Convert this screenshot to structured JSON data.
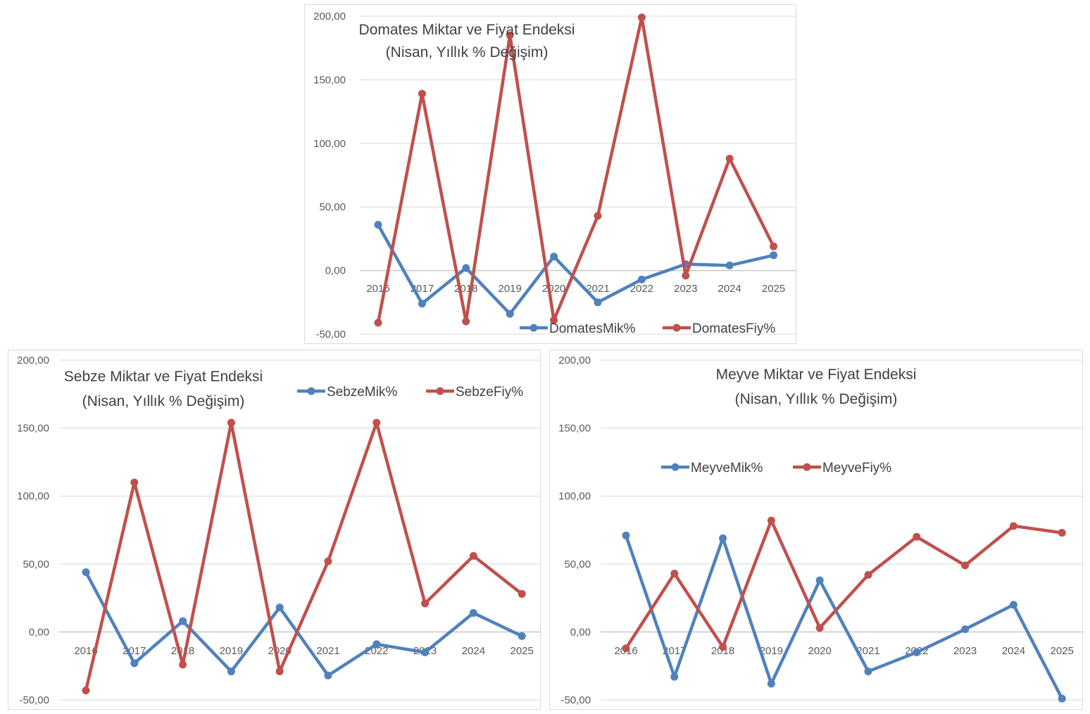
{
  "charts": [
    {
      "title_line1": "Domates Miktar ve Fiyat Endeksi",
      "title_line2": "(Nisan, Yıllık % Değişim)",
      "colors": {
        "miktar": "#4f81bd",
        "fiyat": "#c0504d",
        "grid": "#d9d9d9",
        "axis": "#bfbfbf"
      },
      "chart_data": {
        "type": "line",
        "title": "Domates Miktar ve Fiyat Endeksi (Nisan, Yıllık % Değişim)",
        "categories": [
          "2016",
          "2017",
          "2018",
          "2019",
          "2020",
          "2021",
          "2022",
          "2023",
          "2024",
          "2025"
        ],
        "ylim": [
          -50,
          200
        ],
        "yticks": [
          "-50,00",
          "0,00",
          "50,00",
          "100,00",
          "150,00",
          "200,00"
        ],
        "grid": true,
        "legend_position": "bottom",
        "series": [
          {
            "name": "DomatesMik%",
            "values": [
              36,
              -26,
              2,
              -34,
              11,
              -25,
              -7,
              5,
              4,
              12
            ]
          },
          {
            "name": "DomatesFiy%",
            "values": [
              -41,
              139,
              -40,
              185,
              -39,
              43,
              199,
              -4,
              88,
              19
            ]
          }
        ]
      }
    },
    {
      "title_line1": "Sebze Miktar ve Fiyat Endeksi",
      "title_line2": "(Nisan, Yıllık % Değişim)",
      "colors": {
        "miktar": "#4f81bd",
        "fiyat": "#c0504d",
        "grid": "#d9d9d9",
        "axis": "#bfbfbf"
      },
      "chart_data": {
        "type": "line",
        "title": "Sebze Miktar ve Fiyat Endeksi (Nisan, Yıllık % Değişim)",
        "categories": [
          "2016",
          "2017",
          "2018",
          "2019",
          "2020",
          "2021",
          "2022",
          "2023",
          "2024",
          "2025"
        ],
        "ylim": [
          -50,
          200
        ],
        "yticks": [
          "-50,00",
          "0,00",
          "50,00",
          "100,00",
          "150,00",
          "200,00"
        ],
        "grid": true,
        "legend_position": "top-right",
        "series": [
          {
            "name": "SebzeMik%",
            "values": [
              44,
              -23,
              8,
              -29,
              18,
              -32,
              -9,
              -15,
              14,
              -3
            ]
          },
          {
            "name": "SebzeFiy%",
            "values": [
              -43,
              110,
              -24,
              154,
              -29,
              52,
              154,
              21,
              56,
              28
            ]
          }
        ]
      }
    },
    {
      "title_line1": "Meyve Miktar ve Fiyat Endeksi",
      "title_line2": "(Nisan, Yıllık % Değişim)",
      "colors": {
        "miktar": "#4f81bd",
        "fiyat": "#c0504d",
        "grid": "#d9d9d9",
        "axis": "#bfbfbf"
      },
      "chart_data": {
        "type": "line",
        "title": "Meyve Miktar ve Fiyat Endeksi (Nisan, Yıllık % Değişim)",
        "categories": [
          "2016",
          "2017",
          "2018",
          "2019",
          "2020",
          "2021",
          "2022",
          "2023",
          "2024",
          "2025"
        ],
        "ylim": [
          -50,
          200
        ],
        "yticks": [
          "-50,00",
          "0,00",
          "50,00",
          "100,00",
          "150,00",
          "200,00"
        ],
        "grid": true,
        "legend_position": "top-center",
        "series": [
          {
            "name": "MeyveMik%",
            "values": [
              71,
              -33,
              69,
              -38,
              38,
              -29,
              -15,
              2,
              20,
              -49
            ]
          },
          {
            "name": "MeyveFiy%",
            "values": [
              -12,
              43,
              -11,
              82,
              3,
              42,
              70,
              49,
              78,
              73
            ]
          }
        ]
      }
    }
  ]
}
